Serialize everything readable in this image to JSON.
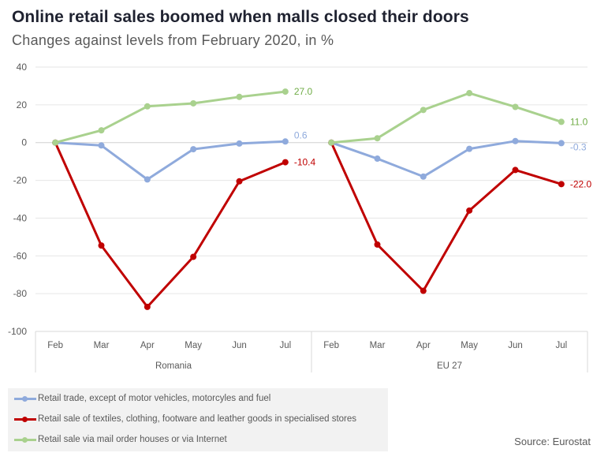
{
  "title": "Online retail sales boomed when malls closed their doors",
  "subtitle": "Changes against levels from February 2020, in %",
  "source": "Source: Eurostat",
  "chart_data": {
    "type": "line",
    "title": "Online retail sales boomed when malls closed their doors",
    "subtitle": "Changes against levels from February 2020, in %",
    "xlabel": "",
    "ylabel": "",
    "ylim": [
      -100,
      40
    ],
    "yticks": [
      40,
      20,
      0,
      -20,
      -40,
      -60,
      -80,
      -100
    ],
    "ytick_labels": [
      "40",
      "20",
      "0",
      "-20",
      "-40",
      "-60",
      "-80",
      "-100"
    ],
    "grid": true,
    "legend_position": "bottom-left",
    "groups": [
      {
        "name": "Romania",
        "categories": [
          "Feb",
          "Mar",
          "Apr",
          "May",
          "Jun",
          "Jul"
        ],
        "series": [
          {
            "name": "Retail trade, except of motor vehicles, motorcyles and fuel",
            "color": "#8faadc",
            "values": [
              0,
              -1.5,
              -19.5,
              -3.5,
              -0.5,
              0.6
            ],
            "end_label": "0.6"
          },
          {
            "name": "Retail sale of textiles, clothing, footware and leather goods in specialised stores",
            "color": "#c00000",
            "values": [
              0,
              -54.5,
              -87.0,
              -60.5,
              -20.5,
              -10.4
            ],
            "end_label": "-10.4"
          },
          {
            "name": "Retail sale via mail order houses or via Internet",
            "color": "#a9d18e",
            "values": [
              0,
              6.5,
              19.2,
              20.8,
              24.2,
              27.0
            ],
            "end_label": "27.0"
          }
        ]
      },
      {
        "name": "EU 27",
        "categories": [
          "Feb",
          "Mar",
          "Apr",
          "May",
          "Jun",
          "Jul"
        ],
        "series": [
          {
            "name": "Retail trade, except of motor vehicles, motorcyles and fuel",
            "color": "#8faadc",
            "values": [
              0,
              -8.5,
              -18.0,
              -3.3,
              0.8,
              -0.3
            ],
            "end_label": "-0.3"
          },
          {
            "name": "Retail sale of textiles, clothing, footware and leather goods in specialised stores",
            "color": "#c00000",
            "values": [
              0,
              -54.0,
              -78.5,
              -36.0,
              -14.5,
              -22.0
            ],
            "end_label": "-22.0"
          },
          {
            "name": "Retail sale via mail order houses or via Internet",
            "color": "#a9d18e",
            "values": [
              0,
              2.3,
              17.3,
              26.2,
              18.9,
              11.0
            ],
            "end_label": "11.0"
          }
        ]
      }
    ],
    "legend": [
      {
        "label": "Retail trade, except of motor vehicles, motorcyles and fuel",
        "color": "#8faadc"
      },
      {
        "label": "Retail sale of textiles, clothing, footware and leather goods in specialised stores",
        "color": "#c00000"
      },
      {
        "label": "Retail sale via mail order houses or via Internet",
        "color": "#a9d18e"
      }
    ],
    "end_label_colors": {
      "blue": "#8faadc",
      "red": "#c00000",
      "green": "#70ad47"
    }
  }
}
